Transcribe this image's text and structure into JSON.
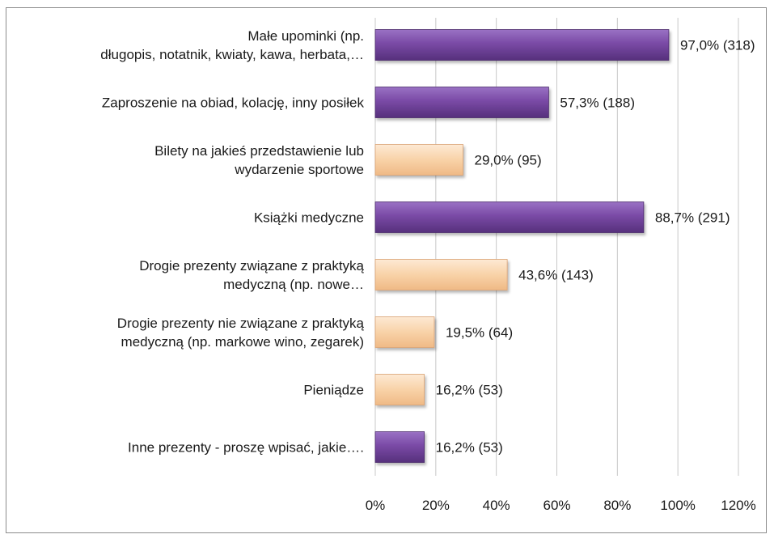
{
  "chart_data": {
    "type": "bar",
    "orientation": "horizontal",
    "categories": [
      [
        "Małe upominki (np.",
        "długopis, notatnik, kwiaty, kawa, herbata,…"
      ],
      [
        "Zaproszenie na obiad, kolację, inny posiłek"
      ],
      [
        "Bilety na jakieś przedstawienie lub",
        "wydarzenie sportowe"
      ],
      [
        "Książki medyczne"
      ],
      [
        "Drogie prezenty związane z praktyką",
        "medyczną (np. nowe…"
      ],
      [
        "Drogie prezenty nie związane z praktyką",
        "medyczną (np. markowe wino, zegarek)"
      ],
      [
        "Pieniądze"
      ],
      [
        "Inne prezenty - proszę wpisać, jakie…."
      ]
    ],
    "values": [
      97.0,
      57.3,
      29.0,
      88.7,
      43.6,
      19.5,
      16.2,
      16.2
    ],
    "data_labels": [
      "97,0% (318)",
      "57,3% (188)",
      "29,0% (95)",
      "88,7% (291)",
      "43,6% (143)",
      "19,5% (64)",
      "16,2% (53)",
      "16,2% (53)"
    ],
    "bar_colors": [
      "purple",
      "purple",
      "peach",
      "purple",
      "peach",
      "peach",
      "peach",
      "purple"
    ],
    "colors": {
      "purple": "#6f3f99",
      "purple_light": "#9a72c4",
      "peach": "#f6c99a",
      "peach_light": "#fde9d4",
      "grid": "#c8c8c8"
    },
    "xlim": [
      0,
      120
    ],
    "x_ticks": [
      "0%",
      "20%",
      "40%",
      "60%",
      "80%",
      "100%",
      "120%"
    ],
    "grid": true,
    "legend": "none"
  }
}
